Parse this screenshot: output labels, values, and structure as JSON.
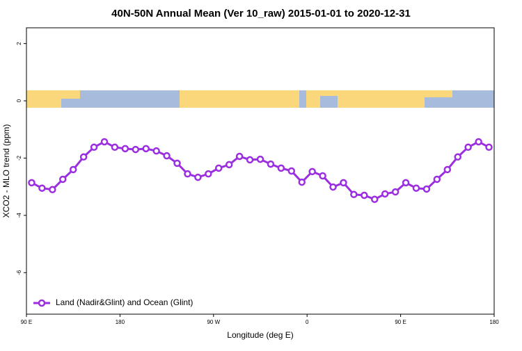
{
  "chart_data": {
    "type": "line",
    "title": "40N-50N Annual Mean (Ver 10_raw)   2015-01-01 to 2020-12-31",
    "xlabel": "Longitude (deg E)",
    "ylabel": "XCO2 - MLO trend (ppm)",
    "x": [
      95,
      105,
      115,
      125,
      135,
      145,
      155,
      165,
      175,
      185,
      195,
      205,
      215,
      225,
      235,
      245,
      255,
      265,
      275,
      285,
      295,
      305,
      315,
      325,
      335,
      345,
      355,
      365,
      375,
      385,
      395,
      405,
      415,
      425,
      435,
      445,
      455,
      465,
      475,
      485,
      495,
      505,
      515,
      525,
      535
    ],
    "series": [
      {
        "name": "Land (Nadir&Glint) and Ocean (Glint)",
        "color": "#9b2fe0",
        "values": [
          -2.86,
          -3.05,
          -3.1,
          -2.74,
          -2.4,
          -1.96,
          -1.62,
          -1.43,
          -1.62,
          -1.67,
          -1.7,
          -1.67,
          -1.75,
          -1.92,
          -2.18,
          -2.55,
          -2.67,
          -2.55,
          -2.35,
          -2.23,
          -1.94,
          -2.06,
          -2.04,
          -2.21,
          -2.35,
          -2.45,
          -2.84,
          -2.47,
          -2.62,
          -3.01,
          -2.86,
          -3.27,
          -3.3,
          -3.44,
          -3.25,
          -3.18,
          -2.86,
          -3.05,
          -3.08,
          -2.74,
          -2.4,
          -1.96,
          -1.62,
          -1.43,
          -1.62
        ]
      }
    ],
    "xlim": [
      90,
      540
    ],
    "xticks": [
      {
        "value": 90,
        "label": "90 E"
      },
      180,
      {
        "value": 270,
        "label": "90 W"
      },
      {
        "value": 360,
        "label": "0"
      },
      {
        "value": 450,
        "label": "90 E"
      },
      {
        "value": 540,
        "label": "180"
      }
    ],
    "ylim": [
      -7.45,
      2.55
    ],
    "yticks": [
      2,
      0,
      -2,
      -4,
      -6
    ],
    "legend": "bottom left"
  }
}
